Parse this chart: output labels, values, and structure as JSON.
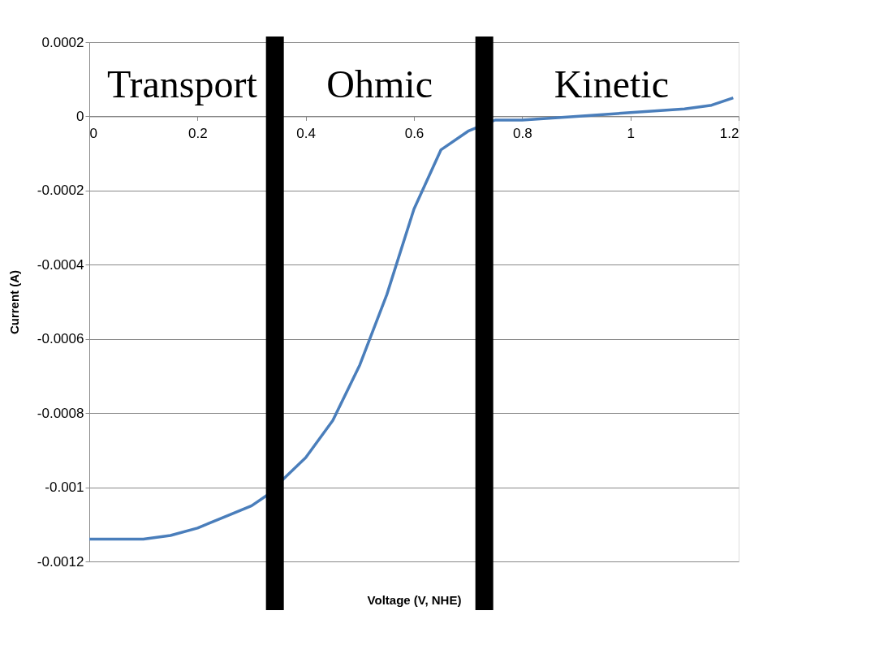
{
  "chart_data": {
    "type": "line",
    "xlabel": "Voltage (V, NHE)",
    "ylabel": "Current (A)",
    "x": [
      0,
      0.05,
      0.1,
      0.15,
      0.2,
      0.25,
      0.3,
      0.33,
      0.357,
      0.4,
      0.45,
      0.5,
      0.55,
      0.6,
      0.65,
      0.7,
      0.75,
      0.8,
      0.9,
      1,
      1.1,
      1.15,
      1.19
    ],
    "series": [
      {
        "color": "#4a7ebb",
        "values": [
          -0.00114,
          -0.00114,
          -0.00114,
          -0.00113,
          -0.00111,
          -0.00108,
          -0.00105,
          -0.00102,
          -0.00098,
          -0.00092,
          -0.00082,
          -0.00067,
          -0.00048,
          -0.00025,
          -9e-05,
          -4e-05,
          -1e-05,
          -1e-05,
          0,
          1e-05,
          2e-05,
          3e-05,
          5e-05
        ]
      }
    ],
    "xlim": [
      0,
      1.2
    ],
    "xticks": [
      0,
      0.2,
      0.4,
      0.6,
      0.8,
      1,
      1.2
    ],
    "ylim": [
      -0.0012,
      0.0002
    ],
    "yticks": [
      -0.0012,
      -0.001,
      -0.0008,
      -0.0006,
      -0.0004,
      -0.0002,
      0,
      0.0002
    ],
    "grid": "y",
    "marker": "none",
    "line_style": "solid",
    "ref_lines": [
      {
        "axis": "x",
        "value": 0.343,
        "color": "#000000"
      },
      {
        "axis": "x",
        "value": 0.73,
        "color": "#000000"
      }
    ],
    "annotations": [
      "Transport",
      "Ohmic",
      "Kinetic"
    ]
  }
}
